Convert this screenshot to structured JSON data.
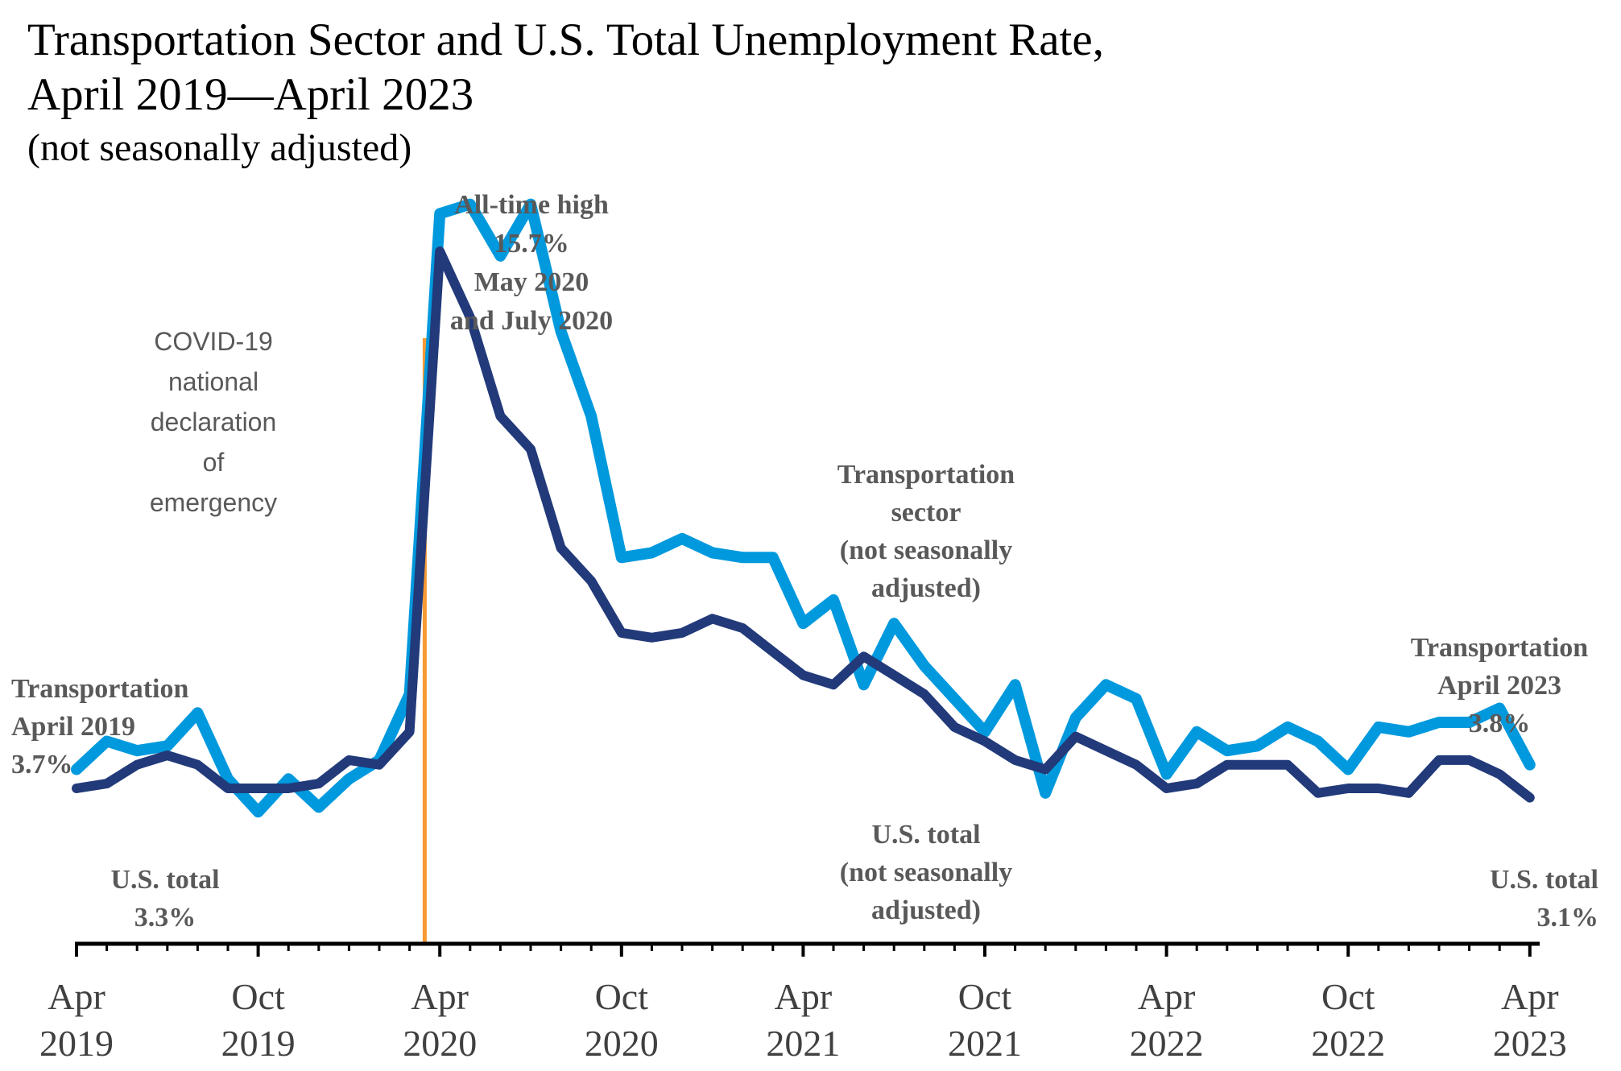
{
  "chart_data": {
    "type": "line",
    "title": "Transportation Sector and U.S. Total Unemployment Rate,",
    "title_line2": "April 2019—April 2023",
    "subtitle": "(not seasonally adjusted)",
    "xlabel": "",
    "ylabel": "",
    "ylim": [
      0,
      17
    ],
    "grid": false,
    "x_ticks": [
      {
        "month": "Apr",
        "year": "2019",
        "index": 0
      },
      {
        "month": "Oct",
        "year": "2019",
        "index": 6
      },
      {
        "month": "Apr",
        "year": "2020",
        "index": 12
      },
      {
        "month": "Oct",
        "year": "2020",
        "index": 18
      },
      {
        "month": "Apr",
        "year": "2021",
        "index": 24
      },
      {
        "month": "Oct",
        "year": "2021",
        "index": 30
      },
      {
        "month": "Apr",
        "year": "2022",
        "index": 36
      },
      {
        "month": "Oct",
        "year": "2022",
        "index": 42
      },
      {
        "month": "Apr",
        "year": "2023",
        "index": 48
      }
    ],
    "series": [
      {
        "name": "Transportation sector (not seasonally adjusted)",
        "color": "#0099DD",
        "values": [
          3.7,
          4.3,
          4.1,
          4.2,
          4.9,
          3.5,
          2.8,
          3.5,
          2.9,
          3.5,
          3.9,
          5.3,
          15.5,
          15.7,
          14.6,
          15.7,
          13.0,
          11.2,
          8.2,
          8.3,
          8.6,
          8.3,
          8.2,
          8.2,
          6.8,
          7.3,
          5.5,
          6.8,
          5.9,
          5.2,
          4.5,
          5.5,
          3.2,
          4.8,
          5.5,
          5.2,
          3.6,
          4.5,
          4.1,
          4.2,
          4.6,
          4.3,
          3.7,
          4.6,
          4.5,
          4.7,
          4.7,
          5.0,
          3.8
        ]
      },
      {
        "name": "U.S. total (not seasonally adjusted)",
        "color": "#223A7A",
        "values": [
          3.3,
          3.4,
          3.8,
          4.0,
          3.8,
          3.3,
          3.3,
          3.3,
          3.4,
          3.9,
          3.8,
          4.5,
          14.7,
          13.3,
          11.2,
          10.5,
          8.4,
          7.7,
          6.6,
          6.5,
          6.6,
          6.9,
          6.7,
          6.2,
          5.7,
          5.5,
          6.1,
          5.7,
          5.3,
          4.6,
          4.3,
          3.9,
          3.7,
          4.4,
          4.1,
          3.8,
          3.3,
          3.4,
          3.8,
          3.8,
          3.8,
          3.2,
          3.3,
          3.3,
          3.2,
          3.9,
          3.9,
          3.6,
          3.1
        ]
      }
    ],
    "annotations": {
      "covid": [
        "COVID-19",
        "national",
        "declaration",
        "of",
        "emergency"
      ],
      "covid_line_index": 11.5,
      "peak": [
        "All-time high",
        "15.7%",
        "May 2020",
        "and July 2020"
      ],
      "transport_start": [
        "Transportation",
        "April 2019",
        "3.7%"
      ],
      "us_start": [
        "U.S. total",
        "3.3%"
      ],
      "transport_mid": [
        "Transportation",
        "sector",
        "(not seasonally",
        "adjusted)"
      ],
      "us_mid": [
        "U.S. total",
        "(not seasonally",
        "adjusted)"
      ],
      "transport_end": [
        "Transportation",
        "April 2023",
        "3.8%"
      ],
      "us_end": [
        "U.S. total",
        "3.1%"
      ]
    }
  },
  "colors": {
    "covid_line": "#F79A34",
    "axis": "#000000",
    "annotation": "#595959"
  }
}
